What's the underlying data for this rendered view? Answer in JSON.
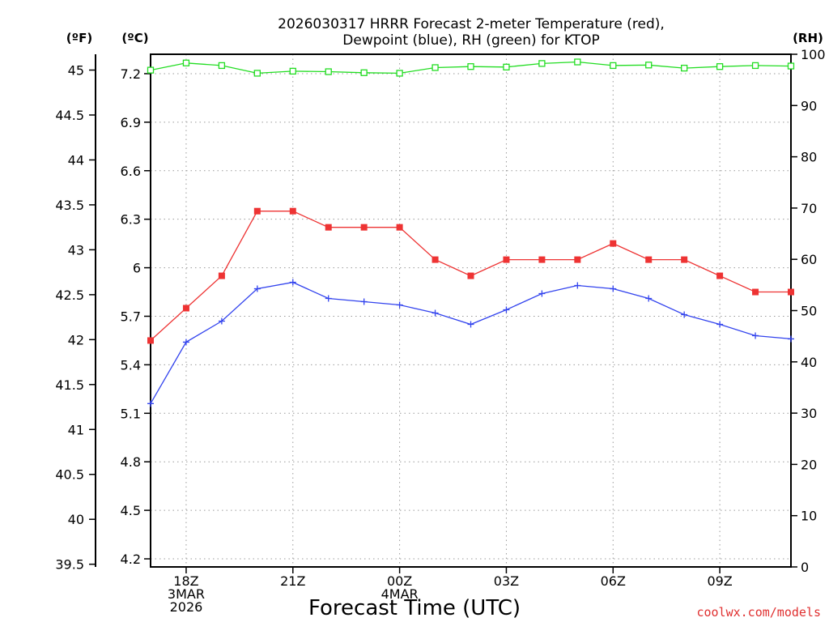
{
  "chart_data": {
    "type": "line",
    "title_line1": "2026030317 HRRR Forecast 2-meter Temperature (red),",
    "title_line2": "Dewpoint (blue), RH (green) for KTOP",
    "xlabel": "Forecast Time (UTC)",
    "credit": "coolwx.com/models",
    "units": {
      "left_outer": "(ºF)",
      "left_inner": "(ºC)",
      "right": "(RH)"
    },
    "x_hours": [
      17,
      18,
      19,
      20,
      21,
      22,
      23,
      24,
      25,
      26,
      27,
      28,
      29,
      30,
      31,
      32,
      33,
      34,
      35
    ],
    "x_ticks": [
      {
        "hour": 18,
        "lines": [
          "18Z",
          "3MAR",
          "2026"
        ]
      },
      {
        "hour": 21,
        "lines": [
          "21Z"
        ]
      },
      {
        "hour": 24,
        "lines": [
          "00Z",
          "4MAR"
        ]
      },
      {
        "hour": 27,
        "lines": [
          "03Z"
        ]
      },
      {
        "hour": 30,
        "lines": [
          "06Z"
        ]
      },
      {
        "hour": 33,
        "lines": [
          "09Z"
        ]
      }
    ],
    "ylim_c": [
      4.15,
      7.32
    ],
    "ylim_rh": [
      0,
      100
    ],
    "y_ticks_c": [
      "4.2",
      "4.5",
      "4.8",
      "5.1",
      "5.4",
      "5.7",
      "6",
      "6.3",
      "6.6",
      "6.9",
      "7.2"
    ],
    "y_ticks_f": [
      "39.5",
      "40",
      "40.5",
      "41",
      "41.5",
      "42",
      "42.5",
      "43",
      "43.5",
      "44",
      "44.5",
      "45"
    ],
    "y_ticks_rh": [
      "0",
      "10",
      "20",
      "30",
      "40",
      "50",
      "60",
      "70",
      "80",
      "90",
      "100"
    ],
    "grid": true,
    "series": [
      {
        "name": "2-meter Temperature",
        "color": "#ee3333",
        "marker": "filled-square",
        "values_c": [
          5.55,
          5.75,
          5.95,
          6.35,
          6.35,
          6.25,
          6.25,
          6.25,
          6.05,
          5.95,
          6.05,
          6.05,
          6.05,
          6.15,
          6.05,
          6.05,
          5.95,
          5.85,
          5.85
        ]
      },
      {
        "name": "Dewpoint",
        "color": "#3344ee",
        "marker": "plus",
        "values_c": [
          5.16,
          5.54,
          5.67,
          5.87,
          5.91,
          5.81,
          5.79,
          5.77,
          5.72,
          5.65,
          5.74,
          5.84,
          5.89,
          5.87,
          5.81,
          5.71,
          5.65,
          5.58,
          5.56
        ]
      },
      {
        "name": "RH",
        "color": "#22dd22",
        "marker": "open-square",
        "axis": "rh",
        "values_rh": [
          96.9,
          98.3,
          97.8,
          96.3,
          96.7,
          96.6,
          96.4,
          96.3,
          97.4,
          97.6,
          97.5,
          98.2,
          98.5,
          97.8,
          97.9,
          97.3,
          97.6,
          97.8,
          97.7
        ]
      }
    ]
  }
}
